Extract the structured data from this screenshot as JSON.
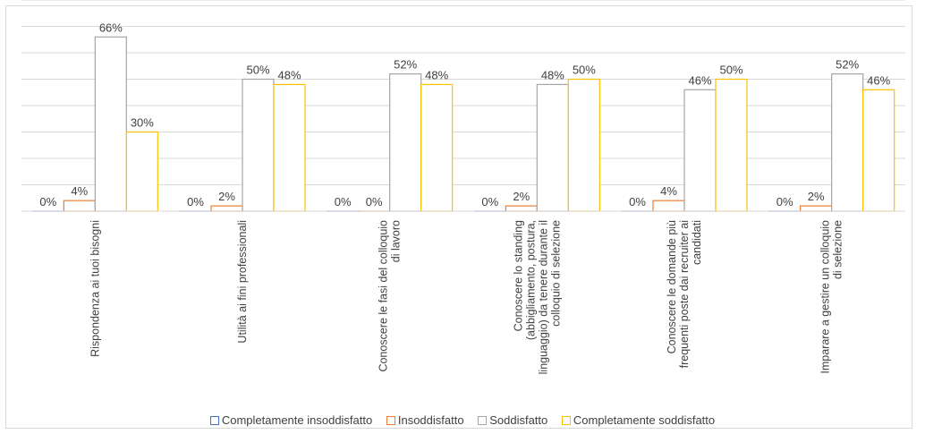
{
  "chart_data": {
    "type": "bar",
    "title": "",
    "xlabel": "",
    "ylabel": "",
    "ylim": [
      0,
      80
    ],
    "grid": true,
    "legend_position": "bottom",
    "categories": [
      [
        "Rispondenza ai tuoi bisogni"
      ],
      [
        "Utilità ai fini professionali"
      ],
      [
        "Conoscere le fasi del colloquio",
        "di lavoro"
      ],
      [
        "Conoscere lo standing",
        "(abbigliamento, postura,",
        "linguaggio) da tenere durante il",
        "colloquio di selezione"
      ],
      [
        "Conoscere le domande più",
        "frequenti poste dai recruiter ai",
        "candidati"
      ],
      [
        "Imparare a gestire un colloquio",
        "di selezione"
      ]
    ],
    "series": [
      {
        "name": "Completamente insoddisfatto",
        "color": "#4472c4",
        "values": [
          0,
          0,
          0,
          0,
          0,
          0
        ],
        "labels": [
          "0%",
          "0%",
          "0%",
          "0%",
          "0%",
          "0%"
        ]
      },
      {
        "name": "Insoddisfatto",
        "color": "#ed7d31",
        "values": [
          4,
          2,
          0,
          2,
          4,
          2
        ],
        "labels": [
          "4%",
          "2%",
          "0%",
          "2%",
          "4%",
          "2%"
        ]
      },
      {
        "name": "Soddisfatto",
        "color": "#a5a5a5",
        "values": [
          66,
          50,
          52,
          48,
          46,
          52
        ],
        "labels": [
          "66%",
          "50%",
          "52%",
          "48%",
          "46%",
          "52%"
        ]
      },
      {
        "name": "Completamente soddisfatto",
        "color": "#ffc000",
        "values": [
          30,
          48,
          48,
          50,
          50,
          46
        ],
        "labels": [
          "30%",
          "48%",
          "48%",
          "50%",
          "50%",
          "46%"
        ]
      }
    ]
  }
}
